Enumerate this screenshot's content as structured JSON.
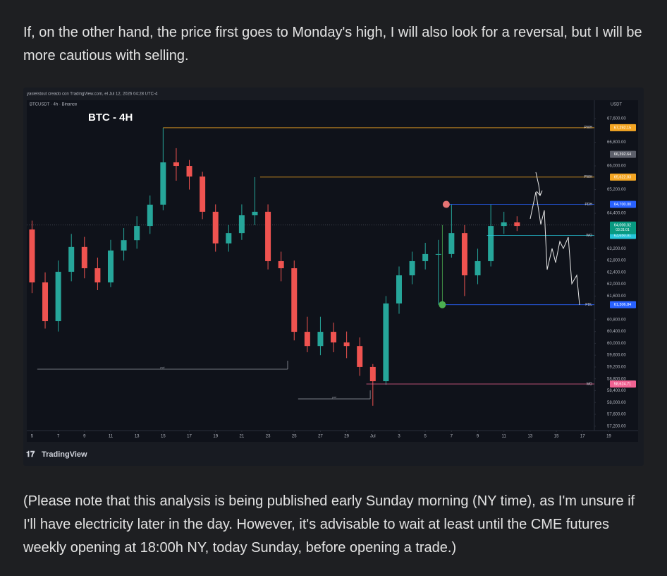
{
  "paragraphs": [
    "If, on the other hand, the price first goes to Monday's high, I will also look for a reversal, but I will be more cautious with selling.",
    "(Please note that this analysis is being published early Sunday morning (NY time), as I'm unsure if I'll have electricity later in the day. However, it's advisable to wait at least until the CME futures weekly opening at 18:00h NY, today Sunday, before opening a trade.)"
  ],
  "chart_data": {
    "type": "candlestick",
    "header": "yasielstout creado con TradingView.com, el Jul 12, 2026 04:28 UTC-4",
    "symbol": "BTCUSDT · 4h · Binance",
    "title": "BTC - 4H",
    "currency": "USDT",
    "footer": "TradingView",
    "up_color": "#26a69a",
    "down_color": "#ef5350",
    "x": [
      5,
      6,
      7,
      8,
      9,
      10,
      11,
      12,
      13,
      14,
      15,
      16,
      17,
      18,
      19,
      20,
      21,
      22,
      23,
      24,
      25,
      26,
      27,
      28,
      29,
      30,
      31,
      32,
      33,
      34,
      35,
      36,
      37,
      38,
      39,
      40,
      41,
      42
    ],
    "open": [
      63850,
      62060,
      60750,
      62420,
      63260,
      62540,
      62060,
      63140,
      63490,
      63970,
      64690,
      66120,
      66000,
      65640,
      64450,
      63380,
      63730,
      64330,
      64450,
      62780,
      62540,
      60390,
      59910,
      60390,
      60030,
      59910,
      59200,
      58720,
      61350,
      62300,
      62780,
      63020,
      63020,
      63730,
      62300,
      62780,
      63970,
      64090
    ],
    "high": [
      64150,
      62400,
      62800,
      63700,
      63600,
      62900,
      63500,
      63900,
      64300,
      65000,
      67290,
      66600,
      66200,
      65800,
      64700,
      64000,
      64700,
      65620,
      64700,
      63100,
      62800,
      60900,
      60900,
      60700,
      60400,
      60200,
      59300,
      61600,
      62600,
      63100,
      63400,
      63500,
      64700,
      64000,
      63200,
      64700,
      64450,
      64300
    ],
    "low": [
      61700,
      60500,
      60400,
      62100,
      62200,
      61800,
      61900,
      62800,
      63200,
      63700,
      64500,
      65500,
      65200,
      64200,
      63100,
      63100,
      63500,
      64000,
      62500,
      62100,
      60100,
      59700,
      59600,
      59700,
      59500,
      58900,
      57890,
      58600,
      61000,
      62000,
      62500,
      61310,
      62900,
      61600,
      62000,
      62600,
      63700,
      63800
    ],
    "close": [
      62060,
      60750,
      62420,
      63260,
      62540,
      62060,
      63140,
      63490,
      63970,
      64690,
      66120,
      66000,
      65640,
      64450,
      63380,
      63730,
      64330,
      64450,
      62780,
      62540,
      60390,
      59910,
      60390,
      60030,
      59910,
      59200,
      58720,
      61350,
      62300,
      62780,
      63020,
      63020,
      63730,
      62300,
      62780,
      63970,
      64090,
      63970
    ],
    "xlim": [
      4.6,
      47.9
    ],
    "xticks": [
      5,
      7,
      9,
      11,
      13,
      15,
      17,
      19,
      21,
      23,
      25,
      27,
      29,
      {
        "value": 31,
        "label": "Jul"
      },
      {
        "value": 33,
        "label": "3"
      },
      {
        "value": 35,
        "label": "5"
      },
      {
        "value": 37,
        "label": "7"
      },
      {
        "value": 39,
        "label": "9"
      },
      {
        "value": 41,
        "label": "11"
      },
      {
        "value": 43,
        "label": "13"
      },
      {
        "value": 45,
        "label": "15"
      },
      {
        "value": 47,
        "label": "17"
      },
      {
        "value": 49,
        "label": "19"
      }
    ],
    "ylim": [
      57050,
      68221
    ],
    "yticks": [
      {
        "value": 67600,
        "label": "67,600.00"
      },
      {
        "value": 66800,
        "label": "66,800.00"
      },
      {
        "value": 66000,
        "label": "66,000.00"
      },
      {
        "value": 65200,
        "label": "65,200.00"
      },
      {
        "value": 64400,
        "label": "64,400.00"
      },
      {
        "value": 63200,
        "label": "63,200.00"
      },
      {
        "value": 62800,
        "label": "62,800.00"
      },
      {
        "value": 62400,
        "label": "62,400.00"
      },
      {
        "value": 62000,
        "label": "62,000.00"
      },
      {
        "value": 61600,
        "label": "61,600.00"
      },
      {
        "value": 60800,
        "label": "60,800.00"
      },
      {
        "value": 60400,
        "label": "60,400.00"
      },
      {
        "value": 60000,
        "label": "60,000.00"
      },
      {
        "value": 59600,
        "label": "59,600.00"
      },
      {
        "value": 59200,
        "label": "59,200.00"
      },
      {
        "value": 58800,
        "label": "58,800.00"
      },
      {
        "value": 58400,
        "label": "58,400.00"
      },
      {
        "value": 58000,
        "label": "58,000.00"
      },
      {
        "value": 57600,
        "label": "57,600.00"
      },
      {
        "value": 57200,
        "label": "57,200.00"
      }
    ],
    "levels": [
      {
        "name": "PWH",
        "value": 67292.15,
        "value_label": "67,292.15",
        "color": "#f5a623",
        "from": 15
      },
      {
        "name": "PWH",
        "value": 65622.83,
        "value_label": "65,622.83",
        "color": "#f5a623",
        "from": 22.4
      },
      {
        "name": "PDH",
        "value": 64700,
        "value_label": "64,700.00",
        "color": "#2962ff",
        "from": 36.6,
        "dot": "#e57373"
      },
      {
        "name": "WO",
        "value": 63650.01,
        "value_label": "63,650.01",
        "color": "#26c6da",
        "from": 39.7
      },
      {
        "name": "PDL",
        "value": 61306.84,
        "value_label": "61,306.84",
        "color": "#2962ff",
        "from": 36.3,
        "dot": "#4caf50"
      },
      {
        "name": "MO",
        "value": 58624.71,
        "value_label": "58,624.71",
        "color": "#f06292",
        "from": 30.5
      }
    ],
    "last_price": {
      "value": 64000.02,
      "value_label": "64,000.02",
      "countdown": "03:31:01",
      "color": "#089981"
    },
    "marked_price": {
      "value": 66392.64,
      "value_label": "66,392.64",
      "color": "#5d606b"
    },
    "ranges": [
      {
        "label": "pwl",
        "value": 59126,
        "from": 5.4,
        "to": 24.5
      },
      {
        "label": "pwl",
        "value": 58123,
        "from": 25.3,
        "to": 30.8
      }
    ]
  }
}
